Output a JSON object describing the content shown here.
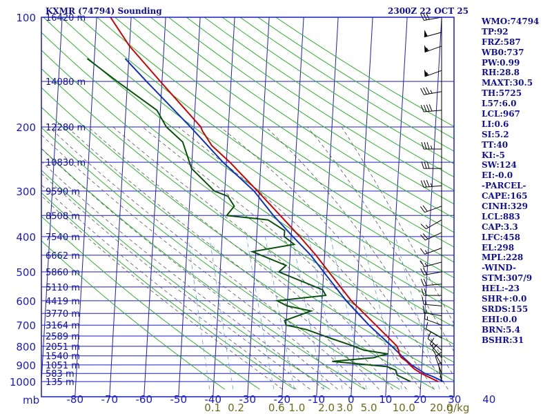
{
  "title_left": "KXMR (74794) Sounding",
  "title_right": "2300Z 22 OCT 25",
  "colors": {
    "frame": "#1a1ac8",
    "pressure_lines": "#1a1ac8",
    "isotherms": "#1a1ac8",
    "dry_adiabats": "#2fb02f",
    "moist_adiabats": "#555555",
    "mixing_ratio": "#5aa0e0",
    "temperature": "#d00000",
    "dewpoint": "#0a4f0a",
    "parcel": "#1030c0",
    "wind": "#000000",
    "mixing_label": "#6b6b1a",
    "text": "#10109a"
  },
  "stats": [
    "WMO:74794",
    "TP:92",
    "FRZ:587",
    "WB0:737",
    "PW:0.99",
    "RH:28.8",
    "MAXT:30.5",
    "TH:5725",
    "L57:6.0",
    "LCL:967",
    "LI:0.6",
    "SI:5.2",
    "TT:40",
    "KI:-5",
    "SW:124",
    "EI:-0.0",
    "-PARCEL-",
    "CAPE:165",
    "CINH:329",
    "LCL:883",
    "CAP:3.3",
    "LFC:458",
    "EL:298",
    "MPL:228",
    "-WIND-",
    "STM:307/9",
    "HEL:-23",
    "SHR+:0.0",
    "SRDS:155",
    "EHI:0.0",
    "BRN:5.4",
    "BSHR:31"
  ],
  "chart_data": {
    "type": "line",
    "subtype": "skew-t log-p",
    "xlabel": "",
    "ylabel": "mb",
    "pressure_levels": [
      100,
      200,
      300,
      400,
      500,
      600,
      700,
      800,
      900,
      1000
    ],
    "pressure_range": [
      100,
      1000
    ],
    "temperature_ticks": [
      -80,
      -70,
      -60,
      -50,
      -40,
      -30,
      -20,
      -10,
      0,
      10,
      20,
      30,
      40
    ],
    "temperature_tick_labels": [
      "-80",
      "-70",
      "-60",
      "-50",
      "-40",
      "-30",
      "-20",
      "-10",
      "0",
      "10",
      "20",
      "30",
      "40"
    ],
    "mixing_ratio_labels": [
      "0.1",
      "0.2",
      "0.6",
      "1.0",
      "2.0",
      "3.0",
      "5.0",
      "10.0",
      "20.0",
      "g/kg"
    ],
    "mixing_ratio_values": [
      0.1,
      0.2,
      0.6,
      1.0,
      2.0,
      3.0,
      5.0,
      10.0,
      20.0
    ],
    "height_labels": [
      {
        "p": 100,
        "label": "16420 m"
      },
      {
        "p": 150,
        "label": "14080 m"
      },
      {
        "p": 200,
        "label": "12280 m"
      },
      {
        "p": 250,
        "label": "10830 m"
      },
      {
        "p": 300,
        "label": "9590 m"
      },
      {
        "p": 350,
        "label": "8508 m"
      },
      {
        "p": 400,
        "label": "7540 m"
      },
      {
        "p": 450,
        "label": "6662 m"
      },
      {
        "p": 500,
        "label": "5860 m"
      },
      {
        "p": 550,
        "label": "5110 m"
      },
      {
        "p": 600,
        "label": "4419 m"
      },
      {
        "p": 650,
        "label": "3770 m"
      },
      {
        "p": 700,
        "label": "3164 m"
      },
      {
        "p": 750,
        "label": "2589 m"
      },
      {
        "p": 800,
        "label": "2051 m"
      },
      {
        "p": 850,
        "label": "1540 m"
      },
      {
        "p": 900,
        "label": "1051 m"
      },
      {
        "p": 950,
        "label": "583 m"
      },
      {
        "p": 1000,
        "label": "135 m"
      }
    ],
    "series": [
      {
        "key": "temperature",
        "points": [
          [
            1000,
            25.0
          ],
          [
            970,
            22.0
          ],
          [
            950,
            20.0
          ],
          [
            925,
            18.0
          ],
          [
            900,
            16.5
          ],
          [
            880,
            15.5
          ],
          [
            860,
            14.0
          ],
          [
            850,
            13.5
          ],
          [
            820,
            13.0
          ],
          [
            800,
            12.5
          ],
          [
            700,
            6.0
          ],
          [
            600,
            -1.5
          ],
          [
            500,
            -8.5
          ],
          [
            450,
            -12.5
          ],
          [
            400,
            -17.5
          ],
          [
            350,
            -23.5
          ],
          [
            300,
            -30.5
          ],
          [
            250,
            -39.0
          ],
          [
            225,
            -44.5
          ],
          [
            205,
            -47.5
          ],
          [
            200,
            -48.0
          ],
          [
            150,
            -60.5
          ],
          [
            120,
            -70.0
          ],
          [
            100,
            -76.0
          ]
        ]
      },
      {
        "key": "dewpoint",
        "points": [
          [
            1000,
            17.0
          ],
          [
            960,
            13.0
          ],
          [
            930,
            12.5
          ],
          [
            910,
            10.0
          ],
          [
            880,
            -6.0
          ],
          [
            860,
            6.0
          ],
          [
            850,
            7.5
          ],
          [
            840,
            10.0
          ],
          [
            820,
            3.0
          ],
          [
            800,
            0.0
          ],
          [
            760,
            -7.0
          ],
          [
            720,
            -14.0
          ],
          [
            700,
            -20.0
          ],
          [
            680,
            -20.5
          ],
          [
            640,
            -13.0
          ],
          [
            620,
            -20.0
          ],
          [
            600,
            -23.0
          ],
          [
            580,
            -9.0
          ],
          [
            560,
            -10.0
          ],
          [
            500,
            -23.0
          ],
          [
            480,
            -21.0
          ],
          [
            440,
            -31.0
          ],
          [
            420,
            -19.0
          ],
          [
            400,
            -22.0
          ],
          [
            385,
            -22.0
          ],
          [
            360,
            -27.0
          ],
          [
            350,
            -39.0
          ],
          [
            330,
            -37.0
          ],
          [
            310,
            -39.0
          ],
          [
            300,
            -43.0
          ],
          [
            260,
            -50.0
          ],
          [
            220,
            -53.0
          ],
          [
            200,
            -58.0
          ],
          [
            180,
            -61.0
          ],
          [
            150,
            -73.0
          ],
          [
            130,
            -82.0
          ]
        ]
      },
      {
        "key": "parcel",
        "points": [
          [
            1000,
            26.5
          ],
          [
            970,
            23.5
          ],
          [
            950,
            21.0
          ],
          [
            900,
            17.0
          ],
          [
            850,
            14.0
          ],
          [
            800,
            11.0
          ],
          [
            700,
            4.0
          ],
          [
            600,
            -3.0
          ],
          [
            500,
            -10.0
          ],
          [
            450,
            -14.0
          ],
          [
            400,
            -19.5
          ],
          [
            350,
            -25.5
          ],
          [
            300,
            -31.5
          ],
          [
            250,
            -41.0
          ],
          [
            200,
            -51.0
          ],
          [
            150,
            -64.5
          ],
          [
            130,
            -71.0
          ]
        ]
      }
    ],
    "wind_barbs": [
      {
        "p": 100,
        "dir": 260,
        "kt": 30
      },
      {
        "p": 110,
        "dir": 255,
        "kt": 50
      },
      {
        "p": 120,
        "dir": 250,
        "kt": 55
      },
      {
        "p": 140,
        "dir": 250,
        "kt": 55
      },
      {
        "p": 160,
        "dir": 260,
        "kt": 35
      },
      {
        "p": 180,
        "dir": 265,
        "kt": 40
      },
      {
        "p": 230,
        "dir": 270,
        "kt": 35
      },
      {
        "p": 260,
        "dir": 270,
        "kt": 30
      },
      {
        "p": 290,
        "dir": 265,
        "kt": 35
      },
      {
        "p": 330,
        "dir": 250,
        "kt": 20
      },
      {
        "p": 360,
        "dir": 240,
        "kt": 15
      },
      {
        "p": 390,
        "dir": 245,
        "kt": 20
      },
      {
        "p": 430,
        "dir": 250,
        "kt": 15
      },
      {
        "p": 470,
        "dir": 255,
        "kt": 15
      },
      {
        "p": 500,
        "dir": 260,
        "kt": 20
      },
      {
        "p": 540,
        "dir": 265,
        "kt": 20
      },
      {
        "p": 580,
        "dir": 270,
        "kt": 20
      },
      {
        "p": 620,
        "dir": 275,
        "kt": 15
      },
      {
        "p": 660,
        "dir": 280,
        "kt": 15
      },
      {
        "p": 700,
        "dir": 290,
        "kt": 15
      },
      {
        "p": 760,
        "dir": 300,
        "kt": 10
      },
      {
        "p": 820,
        "dir": 310,
        "kt": 10
      },
      {
        "p": 860,
        "dir": 320,
        "kt": 15
      },
      {
        "p": 900,
        "dir": 330,
        "kt": 10
      },
      {
        "p": 950,
        "dir": 340,
        "kt": 10
      },
      {
        "p": 1000,
        "dir": 350,
        "kt": 5
      }
    ]
  }
}
